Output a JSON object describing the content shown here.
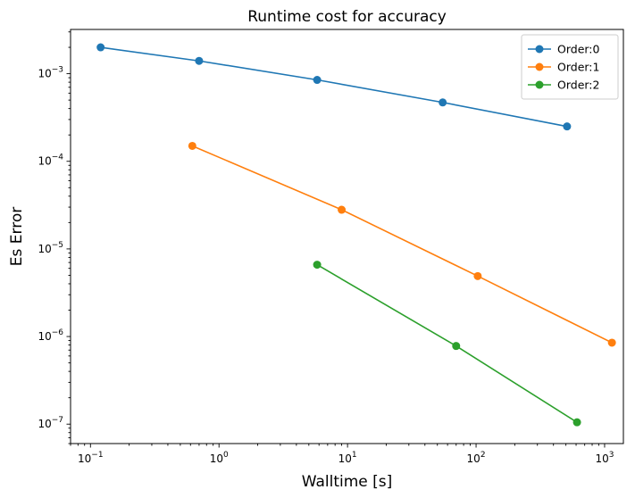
{
  "chart_data": {
    "type": "line",
    "title": "Runtime cost for accuracy",
    "xlabel": "Walltime [s]",
    "ylabel": "Es Error",
    "xscale": "log",
    "yscale": "log",
    "xlim": [
      0.07,
      1400
    ],
    "ylim": [
      6e-08,
      0.0032
    ],
    "grid": false,
    "legend_position": "top-right",
    "x_tick_labels": [
      {
        "value": 0.1,
        "base": "10",
        "exp": "−1"
      },
      {
        "value": 1,
        "base": "10",
        "exp": "0"
      },
      {
        "value": 10,
        "base": "10",
        "exp": "1"
      },
      {
        "value": 100,
        "base": "10",
        "exp": "2"
      },
      {
        "value": 1000,
        "base": "10",
        "exp": "3"
      }
    ],
    "y_tick_labels": [
      {
        "value": 1e-07,
        "base": "10",
        "exp": "−7"
      },
      {
        "value": 1e-06,
        "base": "10",
        "exp": "−6"
      },
      {
        "value": 1e-05,
        "base": "10",
        "exp": "−5"
      },
      {
        "value": 0.0001,
        "base": "10",
        "exp": "−4"
      },
      {
        "value": 0.001,
        "base": "10",
        "exp": "−3"
      }
    ],
    "series": [
      {
        "name": "Order:0",
        "color": "#1f77b4",
        "x": [
          0.12,
          0.7,
          5.8,
          55,
          510
        ],
        "y": [
          0.002,
          0.0014,
          0.00085,
          0.00047,
          0.00025
        ]
      },
      {
        "name": "Order:1",
        "color": "#ff7f0e",
        "x": [
          0.62,
          9,
          103,
          1140
        ],
        "y": [
          0.00015,
          2.8e-05,
          4.9e-06,
          8.5e-07
        ]
      },
      {
        "name": "Order:2",
        "color": "#2ca02c",
        "x": [
          5.8,
          70,
          610
        ],
        "y": [
          6.6e-06,
          7.8e-07,
          1.05e-07
        ]
      }
    ]
  }
}
